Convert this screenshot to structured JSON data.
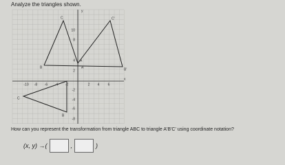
{
  "header": {
    "title": "Analyze the triangles shown."
  },
  "graph": {
    "x_axis_label": "x",
    "y_axis_label": "y",
    "x_tick_labels": [
      "-10",
      "-8",
      "-6",
      "-4",
      "-2",
      "2",
      "4",
      "6"
    ],
    "y_tick_labels": [
      "10",
      "8",
      "4",
      "2",
      "-2",
      "-4",
      "-6",
      "-8"
    ],
    "points": [
      {
        "label": "C"
      },
      {
        "label": "C'"
      },
      {
        "label": "B"
      },
      {
        "label": "A"
      },
      {
        "label": "A'"
      },
      {
        "label": "B'"
      },
      {
        "label": "C"
      },
      {
        "label": "B"
      }
    ]
  },
  "question": {
    "text": "How can you represent the transformation from triangle ABC to triangle A'B'C' using coordinate notation?"
  },
  "answer": {
    "prefix": "(x, y) →(",
    "separator": ",",
    "suffix": ")"
  }
}
